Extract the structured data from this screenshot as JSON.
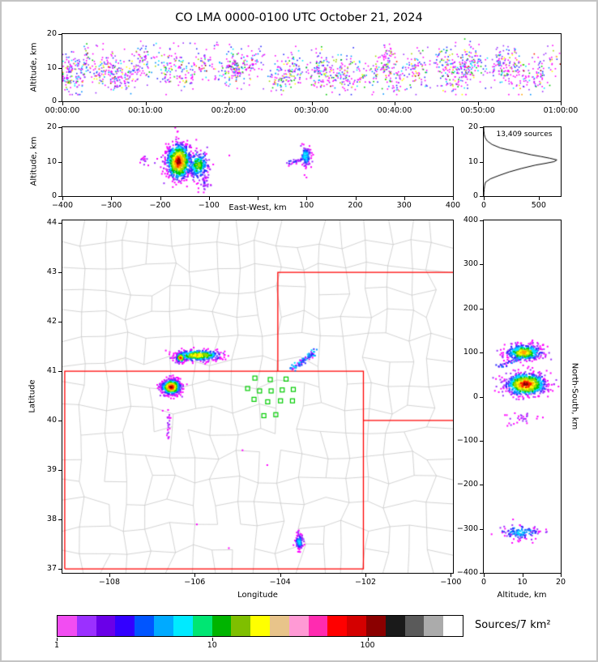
{
  "title": "CO LMA 0000-0100 UTC October 21, 2024",
  "colors": {
    "state_border": "#ff0000",
    "county_line": "#c8c8c8",
    "station": "#00cc00",
    "histogram_line": "#000000",
    "axis": "#000000"
  },
  "palette": [
    "#ff00ff",
    "#9b30ff",
    "#2a2aff",
    "#0090ff",
    "#00e5ff",
    "#00c800",
    "#a0d800",
    "#ffff00",
    "#ffa000",
    "#ff1a00",
    "#8b0000"
  ],
  "colorbar": {
    "label": "Sources/7 km²",
    "colors": [
      "#f24df2",
      "#9b30ff",
      "#6a00e8",
      "#3300ff",
      "#0055ff",
      "#00aaff",
      "#00eaff",
      "#00e673",
      "#00b400",
      "#7fbf00",
      "#ffff00",
      "#e8c48a",
      "#ff9ad5",
      "#ff2bb0",
      "#ff0000",
      "#d40000",
      "#8b0000",
      "#1a1a1a",
      "#5a5a5a",
      "#ababab",
      "#ffffff"
    ],
    "ticks": [
      {
        "pos": 0.0,
        "label": "1"
      },
      {
        "pos": 0.382,
        "label": "10"
      },
      {
        "pos": 0.764,
        "label": "100"
      }
    ]
  },
  "chart_data": {
    "time_height": {
      "type": "scatter",
      "ylabel": "Altitude, km",
      "xlim": [
        0,
        3600
      ],
      "ylim": [
        0,
        20
      ],
      "xticks": [
        {
          "v": 0,
          "label": "00:00:00"
        },
        {
          "v": 600,
          "label": "00:10:00"
        },
        {
          "v": 1200,
          "label": "00:20:00"
        },
        {
          "v": 1800,
          "label": "00:30:00"
        },
        {
          "v": 2400,
          "label": "00:40:00"
        },
        {
          "v": 3000,
          "label": "00:50:00"
        },
        {
          "v": 3600,
          "label": "01:00:00"
        }
      ],
      "yticks": [
        {
          "v": 0,
          "label": "0"
        },
        {
          "v": 10,
          "label": "10"
        },
        {
          "v": 20,
          "label": "20"
        }
      ],
      "flashes": {
        "count": 115,
        "alt_center_range": [
          6,
          13
        ],
        "pts_range": [
          5,
          27
        ],
        "time_spread_s": 28,
        "alt_spread_km": 2.3,
        "seed": 7
      },
      "background": {
        "count": 170,
        "alt_range": [
          3,
          17.5
        ],
        "seed": 8
      }
    },
    "ew_height": {
      "type": "scatter",
      "xlabel": "East-West, km",
      "ylabel": "Altitude, km",
      "xlim": [
        -400,
        400
      ],
      "ylim": [
        0,
        20
      ],
      "xticks": [
        {
          "v": -400,
          "label": "−400"
        },
        {
          "v": -300,
          "label": "−300"
        },
        {
          "v": -200,
          "label": "−200"
        },
        {
          "v": -100,
          "label": "−100"
        },
        {
          "v": 0,
          "label": null
        },
        {
          "v": 100,
          "label": "100"
        },
        {
          "v": 200,
          "label": "200"
        },
        {
          "v": 300,
          "label": "300"
        },
        {
          "v": 400,
          "label": "400"
        }
      ],
      "yticks": [
        {
          "v": 0,
          "label": "0"
        },
        {
          "v": 10,
          "label": "10"
        },
        {
          "v": 20,
          "label": "20"
        }
      ],
      "clusters": [
        {
          "cx": -162,
          "cy": 10,
          "sx": 13,
          "sy": 2.7,
          "n": 800,
          "heat": 1.0,
          "seed": 21
        },
        {
          "cx": -122,
          "cy": 9,
          "sx": 11,
          "sy": 2.1,
          "n": 260,
          "heat": 0.6,
          "seed": 22
        },
        {
          "cx": -110,
          "cy": 3.6,
          "sx": 7,
          "sy": 1.1,
          "n": 35,
          "heat": 0.15,
          "seed": 23
        },
        {
          "cx": 98,
          "cy": 11.6,
          "sx": 5,
          "sy": 1.4,
          "n": 120,
          "heat": 0.45,
          "seed": 24
        },
        {
          "cx": -233,
          "cy": 10.3,
          "sx": 4,
          "sy": 0.9,
          "n": 14,
          "heat": 0.1,
          "seed": 25
        }
      ],
      "lines": [
        {
          "x1": 58,
          "y1": 9.3,
          "x2": 92,
          "y2": 10.8,
          "n": 26,
          "jx": 2,
          "jy": 0.3,
          "heat": 0.15,
          "seed": 26
        }
      ],
      "singles": [
        [
          100,
          5.4
        ],
        [
          96,
          6.1
        ],
        [
          -58,
          11.8
        ]
      ]
    },
    "alt_histogram": {
      "type": "line",
      "annotation": "13,409 sources",
      "xlim": [
        0,
        700
      ],
      "ylim": [
        0,
        20
      ],
      "xticks": [
        {
          "v": 0,
          "label": "0"
        },
        {
          "v": 500,
          "label": "500"
        }
      ],
      "yticks": [
        {
          "v": 0,
          "label": "0"
        },
        {
          "v": 10,
          "label": "10"
        },
        {
          "v": 20,
          "label": "20"
        }
      ],
      "curve": [
        [
          0,
          0
        ],
        [
          1,
          2
        ],
        [
          2,
          4
        ],
        [
          3,
          8
        ],
        [
          4,
          15
        ],
        [
          5,
          60
        ],
        [
          6,
          140
        ],
        [
          7,
          230
        ],
        [
          8,
          340
        ],
        [
          9,
          470
        ],
        [
          9.5,
          560
        ],
        [
          10,
          640
        ],
        [
          10.5,
          665
        ],
        [
          11,
          600
        ],
        [
          11.5,
          520
        ],
        [
          12,
          430
        ],
        [
          12.5,
          360
        ],
        [
          13,
          290
        ],
        [
          13.5,
          215
        ],
        [
          14,
          150
        ],
        [
          15,
          75
        ],
        [
          16,
          32
        ],
        [
          17,
          12
        ],
        [
          18,
          4
        ],
        [
          19,
          1
        ],
        [
          20,
          0
        ]
      ]
    },
    "map": {
      "type": "scatter",
      "xlabel": "Longitude",
      "ylabel": "Latitude",
      "xlim": [
        -109.1,
        -99.95
      ],
      "ylim": [
        36.92,
        44.05
      ],
      "xticks": [
        {
          "v": -108,
          "label": "−108"
        },
        {
          "v": -106,
          "label": "−106"
        },
        {
          "v": -104,
          "label": "−104"
        },
        {
          "v": -102,
          "label": "−102"
        },
        {
          "v": -100,
          "label": "−100"
        }
      ],
      "yticks": [
        {
          "v": 37,
          "label": "37"
        },
        {
          "v": 38,
          "label": "38"
        },
        {
          "v": 39,
          "label": "39"
        },
        {
          "v": 40,
          "label": "40"
        },
        {
          "v": 41,
          "label": "41"
        },
        {
          "v": 42,
          "label": "42"
        },
        {
          "v": 43,
          "label": "43"
        },
        {
          "v": 44,
          "label": "44"
        }
      ],
      "counties": {
        "seed": 77,
        "nx": 18,
        "ny": 15
      },
      "state_lines": [
        [
          [
            -109.045,
            37.0
          ],
          [
            -109.045,
            41.0
          ],
          [
            -102.048,
            41.0
          ],
          [
            -102.048,
            37.0
          ],
          [
            -109.045,
            37.0
          ]
        ],
        [
          [
            -104.053,
            41.0
          ],
          [
            -104.053,
            43.0
          ],
          [
            -99.95,
            43.0
          ]
        ],
        [
          [
            -102.048,
            40.003
          ],
          [
            -99.95,
            40.003
          ]
        ]
      ],
      "stations": [
        [
          -104.59,
          40.86
        ],
        [
          -104.23,
          40.83
        ],
        [
          -103.86,
          40.84
        ],
        [
          -104.76,
          40.65
        ],
        [
          -104.48,
          40.6
        ],
        [
          -104.21,
          40.6
        ],
        [
          -103.95,
          40.62
        ],
        [
          -103.69,
          40.63
        ],
        [
          -104.61,
          40.43
        ],
        [
          -104.29,
          40.38
        ],
        [
          -103.99,
          40.4
        ],
        [
          -103.71,
          40.4
        ],
        [
          -104.38,
          40.1
        ],
        [
          -104.1,
          40.12
        ]
      ],
      "clusters": [
        {
          "cx": -106.55,
          "cy": 40.68,
          "sx": 0.11,
          "sy": 0.075,
          "n": 650,
          "heat": 1.0,
          "seed": 11
        },
        {
          "cx": -105.92,
          "cy": 41.32,
          "sx": 0.27,
          "sy": 0.055,
          "n": 430,
          "heat": 0.78,
          "seed": 12
        },
        {
          "cx": -106.33,
          "cy": 41.27,
          "sx": 0.05,
          "sy": 0.045,
          "n": 150,
          "heat": 0.88,
          "seed": 13
        },
        {
          "cx": -103.55,
          "cy": 37.55,
          "sx": 0.045,
          "sy": 0.075,
          "n": 130,
          "heat": 0.38,
          "seed": 14
        },
        {
          "cx": -106.62,
          "cy": 39.88,
          "sx": 0.022,
          "sy": 0.14,
          "n": 22,
          "heat": 0.12,
          "seed": 15
        }
      ],
      "lines": [
        {
          "x1": -103.75,
          "y1": 41.03,
          "x2": -103.2,
          "y2": 41.38,
          "n": 80,
          "jx": 0.03,
          "jy": 0.03,
          "heat": 0.35,
          "seed": 16
        }
      ],
      "singles": [
        [
          -105.95,
          37.9
        ],
        [
          -105.2,
          37.42
        ],
        [
          -104.88,
          39.4
        ],
        [
          -106.75,
          40.2
        ],
        [
          -104.3,
          39.1
        ]
      ]
    },
    "ns_alt": {
      "type": "scatter",
      "xlabel": "Altitude, km",
      "ylabel": "North-South, km",
      "xlim": [
        0,
        20
      ],
      "ylim": [
        -400,
        400
      ],
      "xticks": [
        {
          "v": 0,
          "label": "0"
        },
        {
          "v": 10,
          "label": "10"
        },
        {
          "v": 20,
          "label": "20"
        }
      ],
      "yticks": [
        {
          "v": 400,
          "label": "400"
        },
        {
          "v": 300,
          "label": "300"
        },
        {
          "v": 200,
          "label": "200"
        },
        {
          "v": 100,
          "label": "100"
        },
        {
          "v": 0,
          "label": "0"
        },
        {
          "v": -100,
          "label": "−100"
        },
        {
          "v": -200,
          "label": "−200"
        },
        {
          "v": -300,
          "label": "−300"
        },
        {
          "v": -400,
          "label": "−400"
        }
      ],
      "clusters": [
        {
          "cx": 11,
          "cy": 28,
          "sx": 2.7,
          "sy": 13,
          "n": 800,
          "heat": 1.0,
          "seed": 31
        },
        {
          "cx": 10.5,
          "cy": 100,
          "sx": 2.4,
          "sy": 9,
          "n": 430,
          "heat": 0.8,
          "seed": 32
        },
        {
          "cx": 10,
          "cy": -50,
          "sx": 2.2,
          "sy": 7,
          "n": 28,
          "heat": 0.12,
          "seed": 33
        },
        {
          "cx": 9.5,
          "cy": -308,
          "sx": 2.6,
          "sy": 9,
          "n": 130,
          "heat": 0.38,
          "seed": 34
        }
      ],
      "lines": [
        {
          "x1": 4,
          "y1": 68,
          "x2": 13.5,
          "y2": 103,
          "n": 60,
          "jx": 0.5,
          "jy": 2,
          "heat": 0.3,
          "seed": 35
        }
      ],
      "singles": [
        [
          14,
          -45
        ],
        [
          6,
          -42
        ]
      ]
    }
  }
}
